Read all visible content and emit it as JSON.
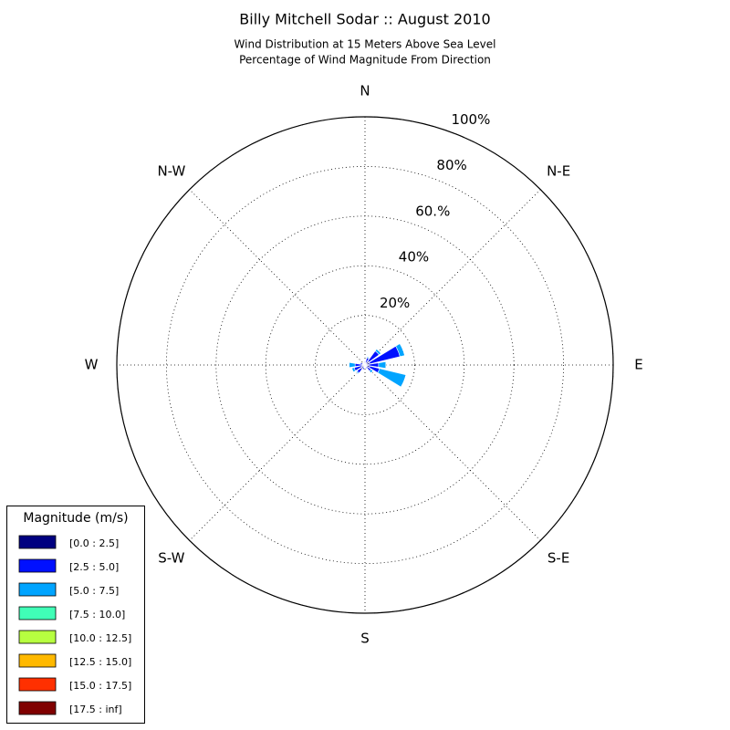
{
  "chart_data": {
    "type": "windrose",
    "title": "Billy Mitchell Sodar :: August 2010",
    "subtitle": [
      "Wind Distribution at 15 Meters Above Sea Level",
      "Percentage of Wind Magnitude From Direction"
    ],
    "categories": [
      "N",
      null,
      "N-E",
      null,
      "E",
      null,
      "S-E",
      null,
      "S",
      null,
      "S-W",
      null,
      "W",
      null,
      "N-W",
      null
    ],
    "rlim": [
      0,
      100
    ],
    "rticks": [
      {
        "value": 20,
        "label": "20%"
      },
      {
        "value": 40,
        "label": "40%"
      },
      {
        "value": 60,
        "label": "60.%"
      },
      {
        "value": 80,
        "label": "80%"
      },
      {
        "value": 100,
        "label": "100%"
      }
    ],
    "grid": true,
    "legend_title": "Magnitude (m/s)",
    "legend_position": "lower left",
    "series": [
      {
        "name": "[0.0 : 2.5]",
        "color": "#000080",
        "values": [
          0.5,
          1,
          2,
          2,
          1.5,
          2,
          1,
          0.5,
          0.5,
          1,
          2,
          1.5,
          1,
          1,
          0.5,
          0.5
        ]
      },
      {
        "name": "[2.5 : 5.0]",
        "color": "#0010ff",
        "values": [
          1,
          2,
          5,
          12.5,
          4,
          4,
          2,
          1,
          0.5,
          1,
          2,
          3,
          3,
          1,
          0.5,
          0.5
        ]
      },
      {
        "name": "[5.0 : 7.5]",
        "color": "#00a4ff",
        "values": [
          0,
          0.5,
          1,
          2,
          3,
          11,
          1,
          0,
          0,
          0,
          0.5,
          1,
          2.5,
          0,
          0,
          0
        ]
      },
      {
        "name": "[7.5 : 10.0]",
        "color": "#40ffb7",
        "values": [
          0,
          0,
          0,
          0,
          0,
          0,
          0,
          0,
          0,
          0,
          0,
          0,
          0,
          0,
          0,
          0
        ]
      },
      {
        "name": "[10.0 : 12.5]",
        "color": "#b7ff40",
        "values": [
          0,
          0,
          0,
          0,
          0,
          0,
          0,
          0,
          0,
          0,
          0,
          0,
          0,
          0,
          0,
          0
        ]
      },
      {
        "name": "[12.5 : 15.0]",
        "color": "#ffb900",
        "values": [
          0,
          0,
          0,
          0,
          0,
          0,
          0,
          0,
          0,
          0,
          0,
          0,
          0,
          0,
          0,
          0
        ]
      },
      {
        "name": "[15.0 : 17.5]",
        "color": "#ff3000",
        "values": [
          0,
          0,
          0,
          0,
          0,
          0,
          0,
          0,
          0,
          0,
          0,
          0,
          0,
          0,
          0,
          0
        ]
      },
      {
        "name": "[17.5 : inf]",
        "color": "#800000",
        "values": [
          0,
          0,
          0,
          0,
          0,
          0,
          0,
          0,
          0,
          0,
          0,
          0,
          0,
          0,
          0,
          0
        ]
      }
    ]
  }
}
